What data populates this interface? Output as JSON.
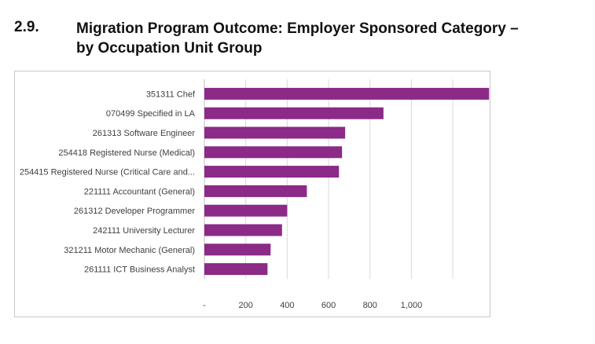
{
  "header": {
    "number": "2.9.",
    "title_line1": "Migration Program Outcome: Employer Sponsored Category –",
    "title_line2": "by Occupation Unit Group"
  },
  "chart_data": {
    "type": "bar",
    "orientation": "horizontal",
    "title": "",
    "xlabel": "",
    "ylabel": "",
    "categories": [
      "351311 Chef",
      "070499 Specified in LA",
      "261313 Software Engineer",
      "254418 Registered Nurse (Medical)",
      "254415 Registered Nurse (Critical Care and...",
      "221111 Accountant (General)",
      "261312 Developer Programmer",
      "242111 University Lecturer",
      "321211 Motor Mechanic (General)",
      "261111 ICT Business Analyst"
    ],
    "values": [
      1375,
      865,
      680,
      665,
      650,
      495,
      400,
      375,
      320,
      305
    ],
    "xlim": [
      0,
      1750
    ],
    "xticks": [
      0,
      200,
      400,
      600,
      800,
      1000
    ],
    "xtick_labels": [
      "-",
      "200",
      "400",
      "600",
      "800",
      "1,000"
    ],
    "grid": true,
    "legend": "none",
    "bar_color": "#8b2a87"
  }
}
